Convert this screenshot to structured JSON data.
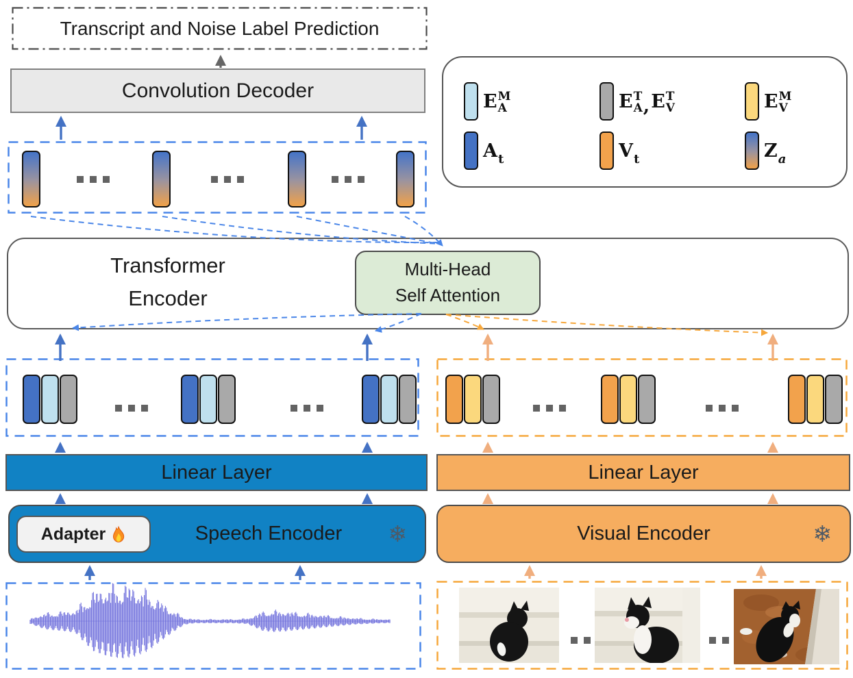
{
  "diagram": {
    "prediction_label": "Transcript and Noise Label Prediction",
    "decoder_label": "Convolution Decoder",
    "transformer": {
      "line1": "Transformer",
      "line2": "Encoder"
    },
    "mhsa": {
      "line1": "Multi-Head",
      "line2": "Self Attention"
    },
    "audio_branch": {
      "linear_label": "Linear Layer",
      "encoder_label": "Speech Encoder",
      "adapter_label": "Adapter"
    },
    "visual_branch": {
      "linear_label": "Linear Layer",
      "encoder_label": "Visual Encoder"
    }
  },
  "icons": {
    "frozen_glyph": "❄",
    "trainable_icon": "flame-icon",
    "ellipsis_style": "three-squares"
  },
  "legend": {
    "items": [
      {
        "token": "masked-audio-embedding",
        "base": "E",
        "sup": "M",
        "sub": "A"
      },
      {
        "token": "text-embeddings",
        "base": "E",
        "sup": "T",
        "sub": "A",
        "separator": ",",
        "base2": "E",
        "sup2": "T",
        "sub2": "V"
      },
      {
        "token": "masked-visual-embedding",
        "base": "E",
        "sup": "M",
        "sub": "V"
      },
      {
        "token": "audio-token",
        "base": "A",
        "sub": "t"
      },
      {
        "token": "visual-token",
        "base": "V",
        "sub": "t"
      },
      {
        "token": "audio-latent",
        "base": "Z",
        "sub": "a"
      }
    ]
  },
  "colors": {
    "audio_block": "#1182C4",
    "visual_block": "#F6AD5F",
    "token_blue": "#4472C4",
    "token_light_blue": "#BFE0EE",
    "token_gray": "#A9A9A9",
    "token_orange": "#F2A24C",
    "token_yellow": "#FBD87D",
    "mhsa_green": "#DCEBD6",
    "decoder_gray": "#E9E9E9",
    "dashed_blue": "#4A86E8",
    "dashed_orange": "#F6A73B",
    "arrow_blue": "#4472C4",
    "arrow_orange": "#F0AE7E",
    "waveform_purple": "#6B6BDB"
  }
}
